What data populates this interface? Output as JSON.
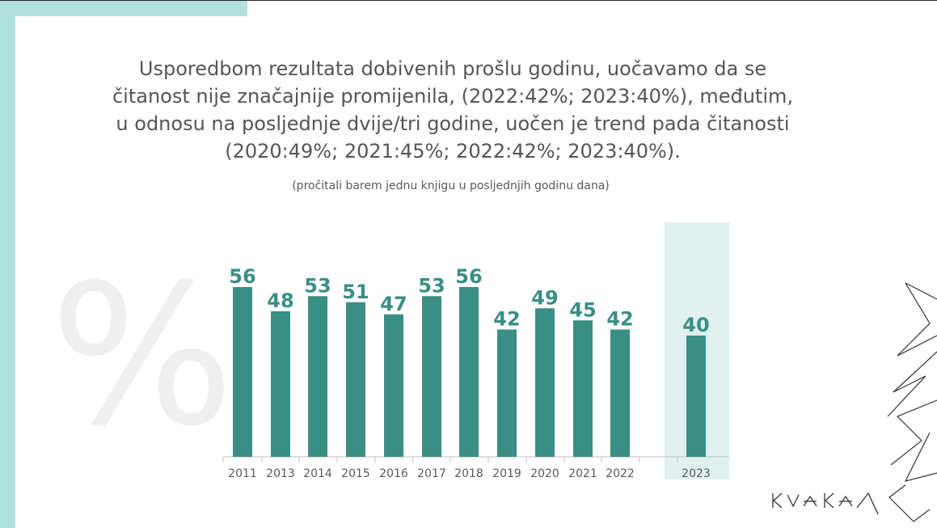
{
  "slide": {
    "headline_lines": [
      "Usporedbom rezultata dobivenih prošlu godinu, uočavamo da se",
      "čitanost nije značajnije promijenila, (2022:42%; 2023:40%), međutim,",
      "u odnosu na posljednje dvije/tri godine, uočen je trend pada čitanosti",
      "(2020:49%; 2021:45%; 2022:42%; 2023:40%)."
    ],
    "percent_symbol": "%",
    "logo_name": "kvaka-logo",
    "colors": {
      "bar": "#3a8e84",
      "label": "#3a8e84",
      "highlight": "#e0f1ef",
      "accent": "#b2e0dc",
      "axis_text": "#595959"
    }
  },
  "chart_data": {
    "type": "bar",
    "subtitle": "(pročitali barem jednu knjigu u posljednjih godinu dana)",
    "categories": [
      "2011",
      "2013",
      "2014",
      "2015",
      "2016",
      "2017",
      "2018",
      "2019",
      "2020",
      "2021",
      "2022",
      "2023"
    ],
    "values": [
      56,
      48,
      53,
      51,
      47,
      53,
      56,
      42,
      49,
      45,
      42,
      40
    ],
    "highlighted_category": "2023",
    "data_labels": true,
    "ylim": [
      0,
      56
    ],
    "grid": false,
    "legend": "none"
  }
}
